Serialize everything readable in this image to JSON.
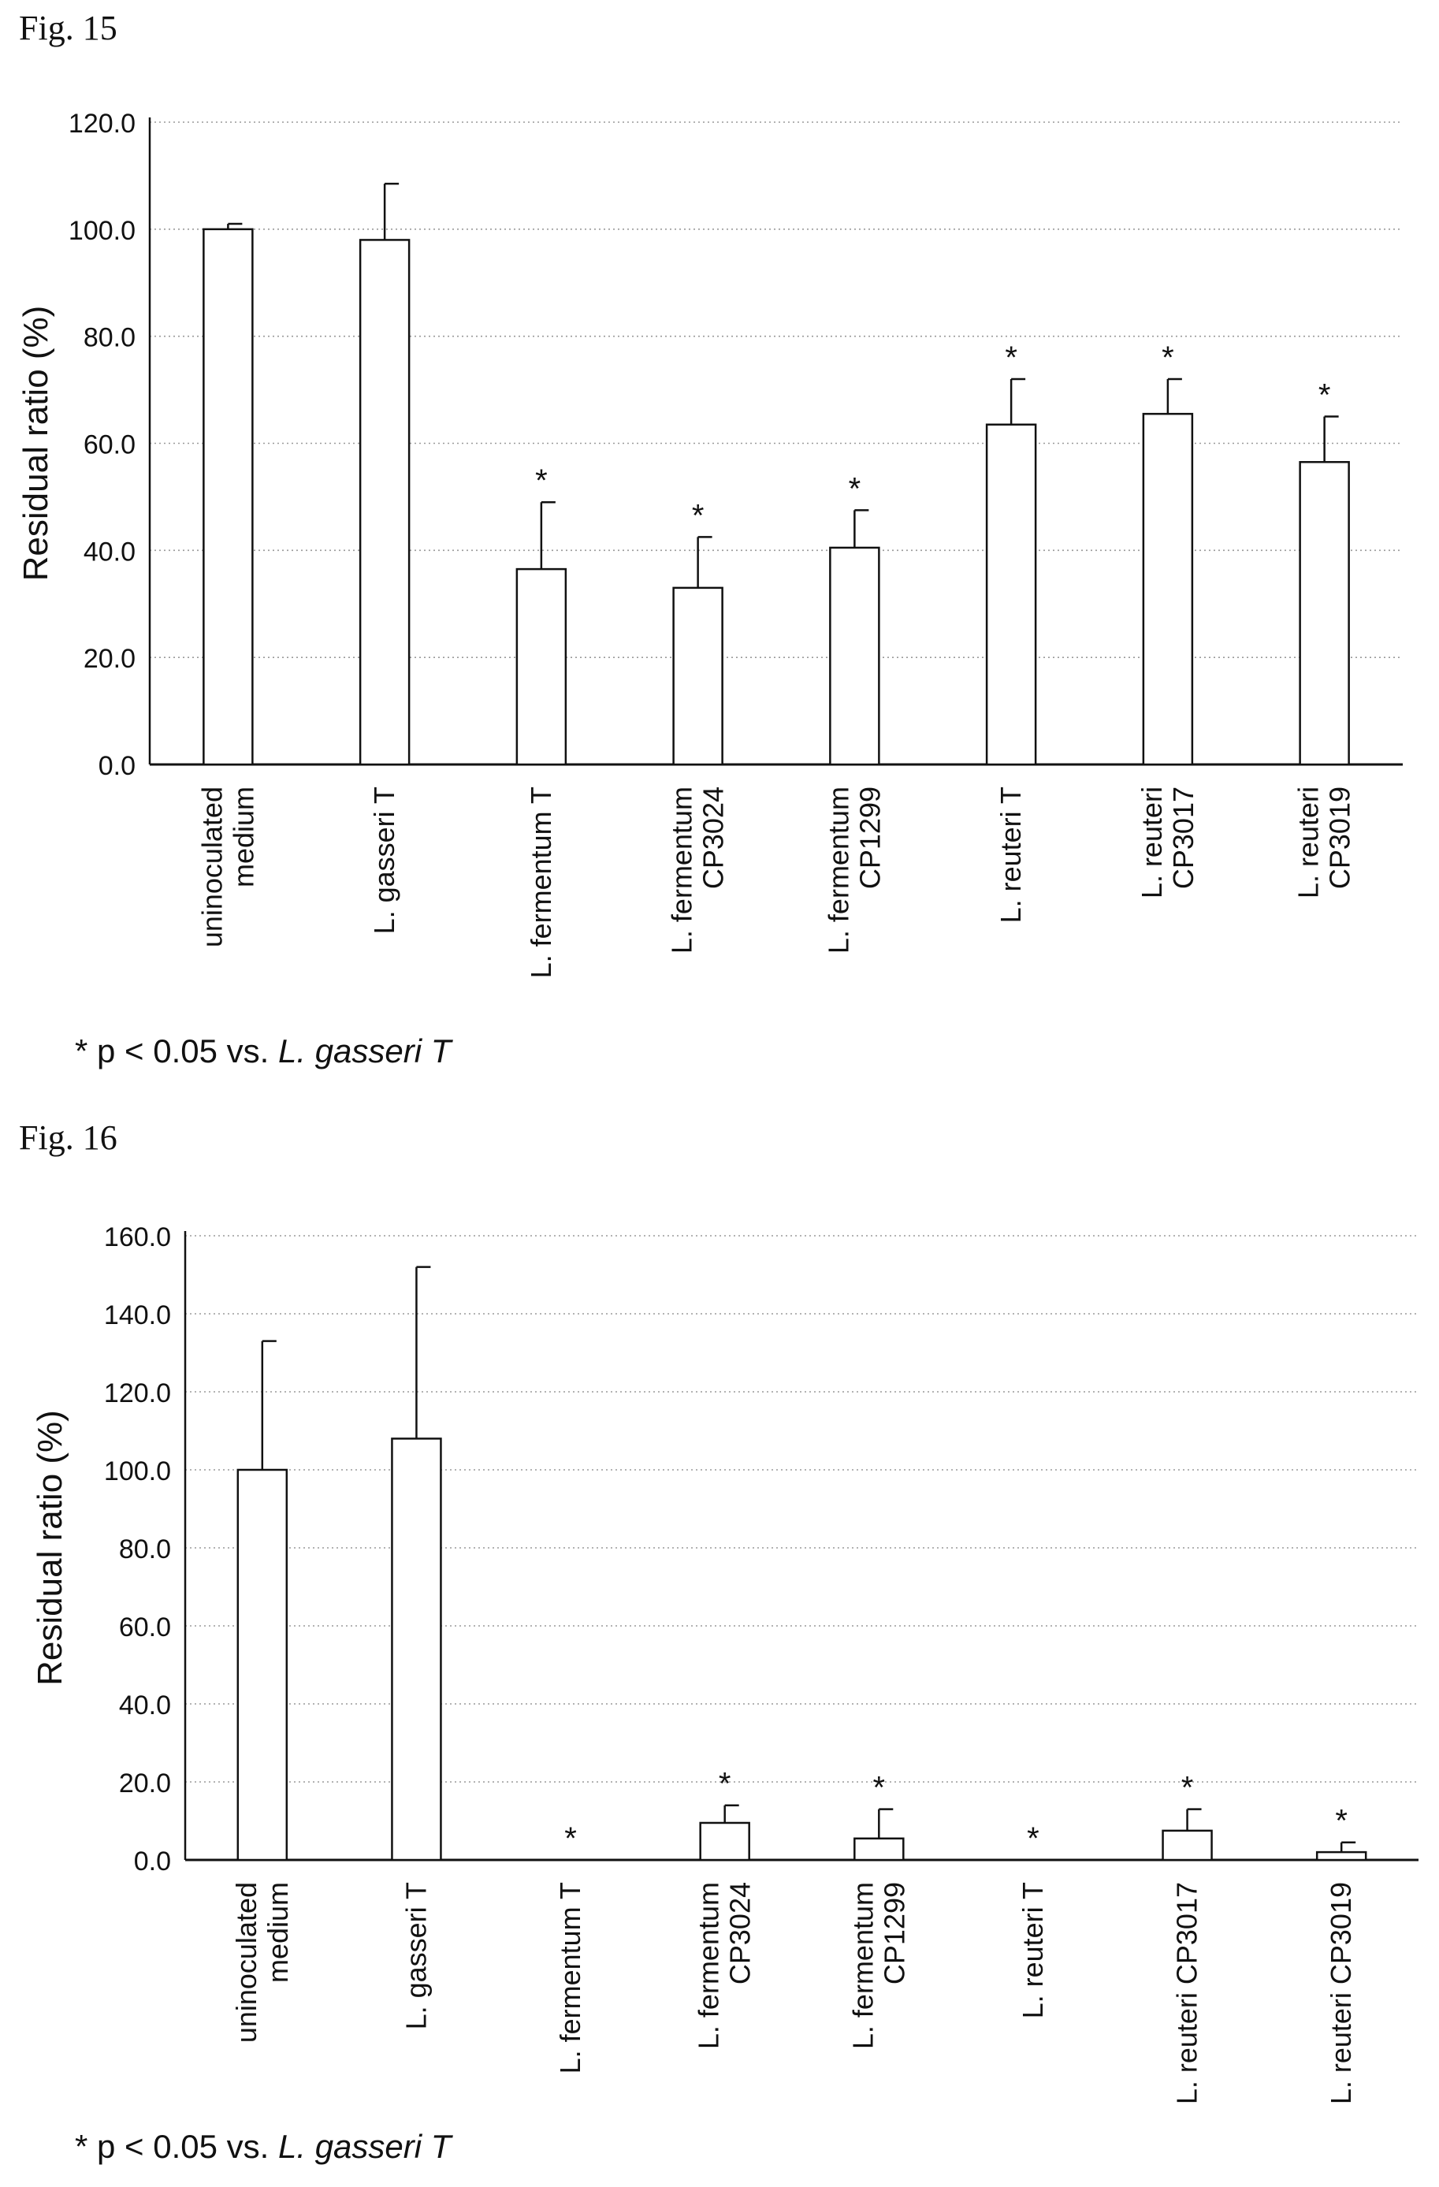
{
  "figures": [
    {
      "label": "Fig.  15",
      "note_prefix": "* p < 0.05 vs. ",
      "note_italic": "L. gasseri T",
      "chart_data": {
        "type": "bar",
        "ylabel": "Residual ratio (%)",
        "xlabel": "",
        "ylim": [
          0,
          120
        ],
        "yticks": [
          "0.0",
          "20.0",
          "40.0",
          "60.0",
          "80.0",
          "100.0",
          "120.0"
        ],
        "grid": "horizontal dotted",
        "categories": [
          [
            "uninoculated",
            "medium"
          ],
          [
            "L. gasseri T"
          ],
          [
            "L. fermentum T"
          ],
          [
            "L. fermentum",
            "CP3024"
          ],
          [
            "L. fermentum",
            "CP1299"
          ],
          [
            "L. reuteri T"
          ],
          [
            "L. reuteri",
            "CP3017"
          ],
          [
            "L. reuteri",
            "CP3019"
          ]
        ],
        "values": [
          100.0,
          98.0,
          36.5,
          33.0,
          40.5,
          63.5,
          65.5,
          56.5
        ],
        "errors": [
          1.0,
          10.5,
          12.5,
          9.5,
          7.0,
          8.5,
          6.5,
          8.5
        ],
        "significant": [
          false,
          false,
          true,
          true,
          true,
          true,
          true,
          true
        ],
        "marker": "*"
      }
    },
    {
      "label": "Fig.  16",
      "note_prefix": "* p < 0.05 vs. ",
      "note_italic": "L. gasseri T",
      "chart_data": {
        "type": "bar",
        "ylabel": "Residual ratio (%)",
        "xlabel": "",
        "ylim": [
          0,
          160
        ],
        "yticks": [
          "0.0",
          "20.0",
          "40.0",
          "60.0",
          "80.0",
          "100.0",
          "120.0",
          "140.0",
          "160.0"
        ],
        "grid": "horizontal dotted",
        "categories": [
          [
            "uninoculated",
            "medium"
          ],
          [
            "L. gasseri T"
          ],
          [
            "L. fermentum T"
          ],
          [
            "L. fermentum",
            "CP3024"
          ],
          [
            "L. fermentum",
            "CP1299"
          ],
          [
            "L. reuteri T"
          ],
          [
            "L. reuteri CP3017"
          ],
          [
            "L. reuteri CP3019"
          ]
        ],
        "values": [
          100.0,
          108.0,
          0.0,
          9.5,
          5.5,
          0.0,
          7.5,
          2.0
        ],
        "errors": [
          33.0,
          44.0,
          0.0,
          4.5,
          7.5,
          0.0,
          5.5,
          2.5
        ],
        "significant": [
          false,
          false,
          true,
          true,
          true,
          true,
          true,
          true
        ],
        "marker": "*"
      }
    }
  ]
}
